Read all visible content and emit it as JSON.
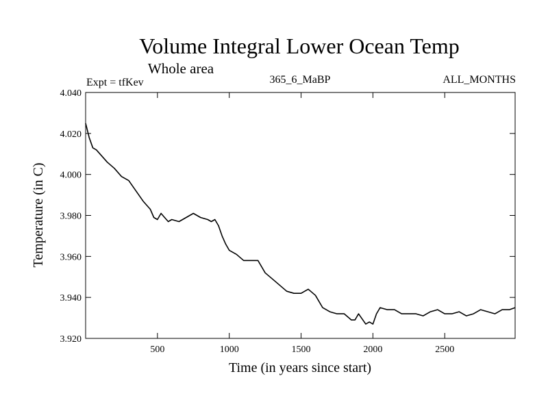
{
  "chart_data": {
    "type": "line",
    "title": "Volume Integral Lower Ocean Temp",
    "subtitle": "Whole area",
    "left_label": "Expt = tfKev",
    "center_label": "365_6_MaBP",
    "right_label": "ALL_MONTHS",
    "xlabel": "Time (in years since start)",
    "ylabel": "Temperature (in C)",
    "xlim": [
      0,
      2990
    ],
    "ylim": [
      3.92,
      4.04
    ],
    "x_ticks": [
      {
        "value": 500,
        "label": "500"
      },
      {
        "value": 1000,
        "label": "1000"
      },
      {
        "value": 1500,
        "label": "1500"
      },
      {
        "value": 2000,
        "label": "2000"
      },
      {
        "value": 2500,
        "label": "2500"
      }
    ],
    "y_ticks": [
      {
        "value": 3.92,
        "label": "3.920"
      },
      {
        "value": 3.94,
        "label": "3.940"
      },
      {
        "value": 3.96,
        "label": "3.960"
      },
      {
        "value": 3.98,
        "label": "3.980"
      },
      {
        "value": 4.0,
        "label": "4.000"
      },
      {
        "value": 4.02,
        "label": "4.020"
      },
      {
        "value": 4.04,
        "label": "4.040"
      }
    ],
    "grid": false,
    "series": [
      {
        "color": "#000000",
        "x": [
          0,
          25,
          50,
          75,
          100,
          150,
          200,
          250,
          300,
          350,
          400,
          425,
          450,
          475,
          500,
          525,
          550,
          575,
          600,
          650,
          700,
          725,
          750,
          800,
          850,
          875,
          900,
          925,
          950,
          975,
          1000,
          1050,
          1100,
          1150,
          1200,
          1250,
          1300,
          1350,
          1400,
          1450,
          1500,
          1550,
          1600,
          1650,
          1700,
          1750,
          1800,
          1850,
          1875,
          1900,
          1950,
          1975,
          2000,
          2025,
          2050,
          2100,
          2150,
          2200,
          2250,
          2300,
          2350,
          2400,
          2450,
          2500,
          2550,
          2600,
          2650,
          2700,
          2750,
          2800,
          2850,
          2900,
          2950,
          2990
        ],
        "y": [
          4.025,
          4.018,
          4.013,
          4.012,
          4.01,
          4.006,
          4.003,
          3.999,
          3.997,
          3.992,
          3.987,
          3.985,
          3.983,
          3.979,
          3.978,
          3.981,
          3.979,
          3.977,
          3.978,
          3.977,
          3.979,
          3.98,
          3.981,
          3.979,
          3.978,
          3.977,
          3.978,
          3.975,
          3.97,
          3.966,
          3.963,
          3.961,
          3.958,
          3.958,
          3.958,
          3.952,
          3.949,
          3.946,
          3.943,
          3.942,
          3.942,
          3.944,
          3.941,
          3.935,
          3.933,
          3.932,
          3.932,
          3.929,
          3.929,
          3.932,
          3.927,
          3.928,
          3.927,
          3.932,
          3.935,
          3.934,
          3.934,
          3.932,
          3.932,
          3.932,
          3.931,
          3.933,
          3.934,
          3.932,
          3.932,
          3.933,
          3.931,
          3.932,
          3.934,
          3.933,
          3.932,
          3.934,
          3.934,
          3.935
        ]
      }
    ]
  }
}
